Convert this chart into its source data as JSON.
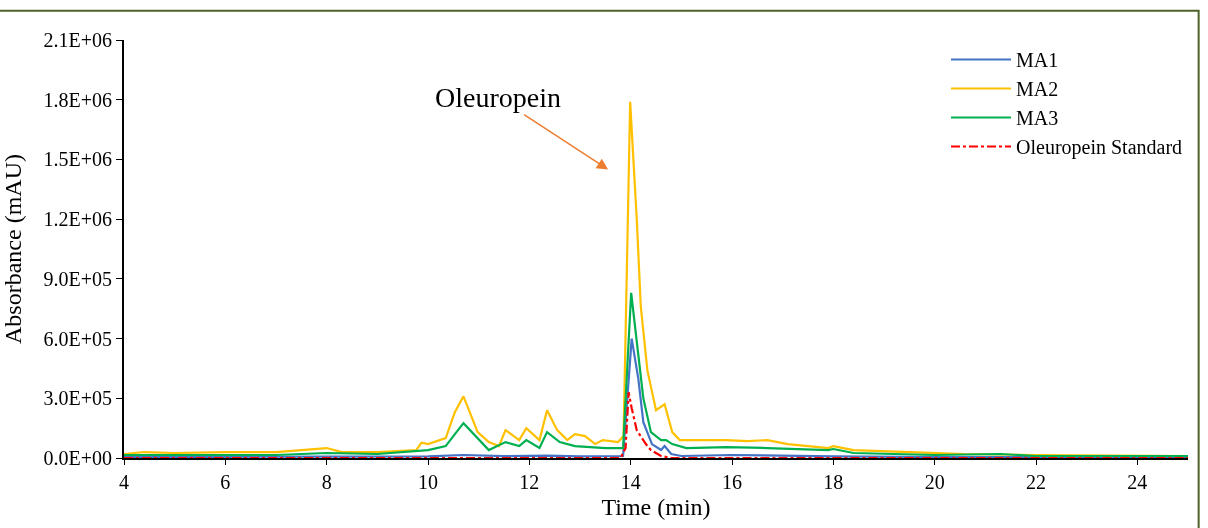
{
  "chart_data": {
    "type": "line",
    "xlabel": "Time (min)",
    "ylabel": "Absorbance (mAU)",
    "xlim": [
      4,
      25
    ],
    "xticks": [
      4,
      6,
      8,
      10,
      12,
      14,
      16,
      18,
      20,
      22,
      24
    ],
    "ylim": [
      0,
      2100000
    ],
    "yticks": [
      {
        "value": 0,
        "label": "0.0E+00"
      },
      {
        "value": 300000,
        "label": "3.0E+05"
      },
      {
        "value": 600000,
        "label": "6.0E+05"
      },
      {
        "value": 900000,
        "label": "9.0E+05"
      },
      {
        "value": 1200000,
        "label": "1.2E+06"
      },
      {
        "value": 1500000,
        "label": "1.5E+06"
      },
      {
        "value": 1800000,
        "label": "1.8E+06"
      },
      {
        "value": 2100000,
        "label": "2.1E+06"
      }
    ],
    "legend": "top right",
    "marker": "none",
    "annotations": [
      "Oleuropein"
    ],
    "series": [
      {
        "name": "MA1",
        "color": "#4472c4",
        "line_style": "solid",
        "x": [
          4,
          6,
          8,
          10,
          10.7,
          11.5,
          12.35,
          13,
          13.85,
          14.02,
          14.15,
          14.25,
          14.42,
          14.6,
          14.67,
          14.8,
          15,
          16,
          18,
          20,
          22,
          25
        ],
        "values": [
          5000,
          6000,
          7000,
          8000,
          15000,
          9000,
          12000,
          8000,
          10000,
          600000,
          400000,
          180000,
          70000,
          40000,
          60000,
          20000,
          10000,
          15000,
          8000,
          5000,
          4000,
          3000
        ]
      },
      {
        "name": "MA2",
        "color": "#ffc000",
        "line_style": "solid",
        "x": [
          4,
          4.4,
          5,
          6,
          7,
          8,
          8.3,
          9,
          9.77,
          9.87,
          10.0,
          10.35,
          10.53,
          10.7,
          10.98,
          11.2,
          11.4,
          11.53,
          11.8,
          11.94,
          12.2,
          12.35,
          12.55,
          12.75,
          12.9,
          13.1,
          13.3,
          13.45,
          13.75,
          13.86,
          13.99,
          14.12,
          14.2,
          14.33,
          14.5,
          14.67,
          14.82,
          14.97,
          15.1,
          15.45,
          15.89,
          16.3,
          16.7,
          17.1,
          17.9,
          18.0,
          18.4,
          19.5,
          20.58,
          22,
          25
        ],
        "values": [
          20000,
          30000,
          25000,
          30000,
          30000,
          50000,
          30000,
          30000,
          40000,
          77000,
          70000,
          100000,
          230000,
          310000,
          130000,
          80000,
          60000,
          140000,
          90000,
          150000,
          90000,
          240000,
          140000,
          90000,
          120000,
          110000,
          70000,
          90000,
          80000,
          110000,
          1790000,
          1200000,
          760000,
          440000,
          240000,
          270000,
          130000,
          90000,
          90000,
          90000,
          90000,
          85000,
          90000,
          70000,
          50000,
          60000,
          40000,
          30000,
          20000,
          15000,
          10000
        ]
      },
      {
        "name": "MA3",
        "color": "#00b050",
        "line_style": "solid",
        "x": [
          4,
          5,
          6,
          7,
          8,
          9,
          10.0,
          10.35,
          10.53,
          10.7,
          11.2,
          11.53,
          11.8,
          11.94,
          12.2,
          12.35,
          12.6,
          12.9,
          13.5,
          13.85,
          14.01,
          14.15,
          14.25,
          14.4,
          14.6,
          14.7,
          14.82,
          15.1,
          15.89,
          16.7,
          17.9,
          18.0,
          18.4,
          20,
          21.3,
          22,
          25
        ],
        "values": [
          15000,
          15000,
          15000,
          15000,
          25000,
          20000,
          40000,
          60000,
          120000,
          175000,
          40000,
          80000,
          60000,
          90000,
          50000,
          130000,
          80000,
          60000,
          50000,
          50000,
          830000,
          520000,
          300000,
          130000,
          90000,
          90000,
          70000,
          50000,
          55000,
          50000,
          40000,
          45000,
          25000,
          15000,
          20000,
          10000,
          10000
        ]
      },
      {
        "name": "Oleuropein Standard",
        "color": "#ff0000",
        "line_style": "dashdot",
        "x": [
          4,
          8,
          12,
          13.8,
          13.9,
          13.96,
          14.02,
          14.12,
          14.3,
          14.4,
          14.6,
          14.8,
          20,
          25
        ],
        "values": [
          0,
          0,
          0,
          0,
          50000,
          330000,
          250000,
          140000,
          70000,
          40000,
          10000,
          0,
          0,
          0
        ]
      }
    ]
  }
}
